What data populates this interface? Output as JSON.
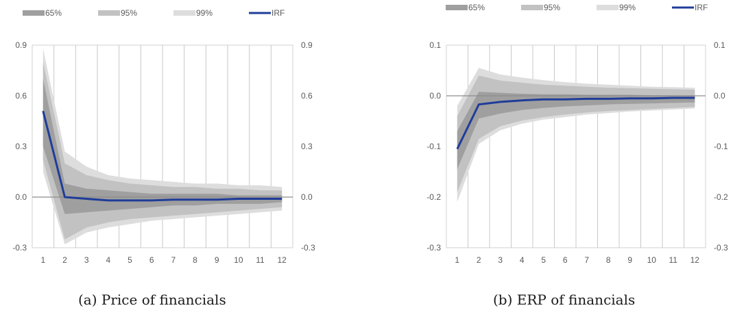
{
  "chart_data": [
    {
      "type": "area",
      "caption": "(a) Price of financials",
      "legend": [
        "65%",
        "95%",
        "99%",
        "IRF"
      ],
      "legend_position": "top",
      "grid": true,
      "x": [
        1,
        2,
        3,
        4,
        5,
        6,
        7,
        8,
        9,
        10,
        11,
        12
      ],
      "ylim": [
        -0.3,
        0.9
      ],
      "yticks": [
        "0.9",
        "0.6",
        "0.3",
        "0.0",
        "-0.3"
      ],
      "ytick_values": [
        0.9,
        0.6,
        0.3,
        0.0,
        -0.3
      ],
      "xticks": [
        "1",
        "2",
        "3",
        "4",
        "5",
        "6",
        "7",
        "8",
        "9",
        "10",
        "11",
        "12"
      ],
      "colors": {
        "b99": "#dddddd",
        "b95": "#c2c2c2",
        "b65": "#9f9f9f",
        "irf": "#1f3c99"
      },
      "series": [
        {
          "name": "99%",
          "lower": [
            0.15,
            -0.28,
            -0.21,
            -0.18,
            -0.16,
            -0.14,
            -0.13,
            -0.12,
            -0.11,
            -0.1,
            -0.09,
            -0.08
          ],
          "upper": [
            0.88,
            0.27,
            0.18,
            0.13,
            0.11,
            0.1,
            0.09,
            0.08,
            0.08,
            0.07,
            0.07,
            0.06
          ]
        },
        {
          "name": "95%",
          "lower": [
            0.22,
            -0.25,
            -0.18,
            -0.15,
            -0.13,
            -0.12,
            -0.11,
            -0.1,
            -0.09,
            -0.08,
            -0.07,
            -0.06
          ],
          "upper": [
            0.8,
            0.2,
            0.13,
            0.1,
            0.08,
            0.07,
            0.06,
            0.06,
            0.05,
            0.05,
            0.04,
            0.04
          ]
        },
        {
          "name": "65%",
          "lower": [
            0.3,
            -0.1,
            -0.09,
            -0.08,
            -0.07,
            -0.06,
            -0.05,
            -0.05,
            -0.04,
            -0.04,
            -0.04,
            -0.03
          ],
          "upper": [
            0.7,
            0.08,
            0.05,
            0.04,
            0.03,
            0.02,
            0.02,
            0.02,
            0.02,
            0.01,
            0.01,
            0.01
          ]
        },
        {
          "name": "IRF",
          "values": [
            0.51,
            0.0,
            -0.01,
            -0.02,
            -0.02,
            -0.02,
            -0.015,
            -0.015,
            -0.015,
            -0.01,
            -0.01,
            -0.01
          ]
        }
      ]
    },
    {
      "type": "area",
      "caption": "(b) ERP of financials",
      "legend": [
        "65%",
        "95%",
        "99%",
        "IRF"
      ],
      "legend_position": "top",
      "grid": true,
      "x": [
        1,
        2,
        3,
        4,
        5,
        6,
        7,
        8,
        9,
        10,
        11,
        12
      ],
      "ylim": [
        -0.3,
        0.1
      ],
      "yticks": [
        "0.1",
        "0.0",
        "-0.1",
        "-0.2",
        "-0.3"
      ],
      "ytick_values": [
        0.1,
        0.0,
        -0.1,
        -0.2,
        -0.3
      ],
      "xticks": [
        "1",
        "2",
        "3",
        "4",
        "5",
        "6",
        "7",
        "8",
        "9",
        "10",
        "11",
        "12"
      ],
      "colors": {
        "b99": "#dddddd",
        "b95": "#c2c2c2",
        "b65": "#9f9f9f",
        "irf": "#1f3c99"
      },
      "series": [
        {
          "name": "99%",
          "lower": [
            -0.21,
            -0.095,
            -0.068,
            -0.055,
            -0.047,
            -0.042,
            -0.037,
            -0.034,
            -0.031,
            -0.029,
            -0.027,
            -0.025
          ],
          "upper": [
            -0.02,
            0.055,
            0.042,
            0.036,
            0.031,
            0.027,
            0.024,
            0.022,
            0.02,
            0.018,
            0.017,
            0.016
          ]
        },
        {
          "name": "95%",
          "lower": [
            -0.19,
            -0.085,
            -0.06,
            -0.049,
            -0.042,
            -0.037,
            -0.033,
            -0.03,
            -0.028,
            -0.026,
            -0.024,
            -0.022
          ],
          "upper": [
            -0.04,
            0.04,
            0.03,
            0.026,
            0.022,
            0.02,
            0.018,
            0.016,
            0.015,
            0.014,
            0.013,
            0.012
          ]
        },
        {
          "name": "65%",
          "lower": [
            -0.145,
            -0.045,
            -0.035,
            -0.028,
            -0.024,
            -0.021,
            -0.019,
            -0.017,
            -0.016,
            -0.015,
            -0.014,
            -0.013
          ],
          "upper": [
            -0.07,
            0.008,
            0.006,
            0.004,
            0.003,
            0.003,
            0.002,
            0.002,
            0.002,
            0.001,
            0.001,
            0.001
          ]
        },
        {
          "name": "IRF",
          "values": [
            -0.105,
            -0.017,
            -0.012,
            -0.009,
            -0.007,
            -0.007,
            -0.006,
            -0.006,
            -0.005,
            -0.005,
            -0.004,
            -0.004
          ]
        }
      ]
    }
  ]
}
